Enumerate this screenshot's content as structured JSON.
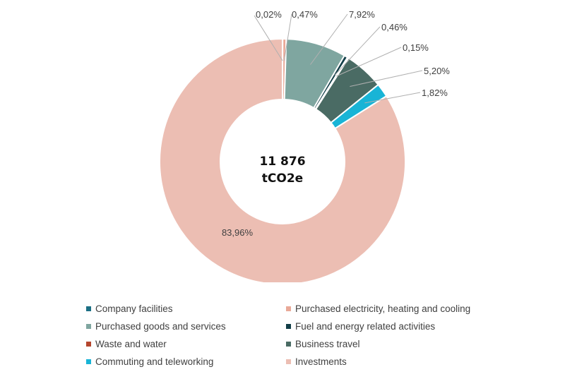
{
  "chart_data": {
    "type": "pie",
    "title": "",
    "center_label": [
      "11 876",
      "tCO2e"
    ],
    "legend_position": "bottom",
    "slices": [
      {
        "name": "Company facilities",
        "value": 0.02,
        "label": "0,02%",
        "color": "#1b6f84"
      },
      {
        "name": "Purchased electricity, heating and cooling",
        "value": 0.47,
        "label": "0,47%",
        "color": "#e9a998"
      },
      {
        "name": "Purchased goods and services",
        "value": 7.92,
        "label": "7,92%",
        "color": "#7fa6a0"
      },
      {
        "name": "Fuel and energy related activities",
        "value": 0.46,
        "label": "0,46%",
        "color": "#123e48"
      },
      {
        "name": "Waste and water",
        "value": 0.15,
        "label": "0,15%",
        "color": "#b5462e"
      },
      {
        "name": "Business travel",
        "value": 5.2,
        "label": "5,20%",
        "color": "#4a6b64"
      },
      {
        "name": "Commuting and teleworking",
        "value": 1.82,
        "label": "1,82%",
        "color": "#19b4d6"
      },
      {
        "name": "Investments",
        "value": 83.96,
        "label": "83,96%",
        "color": "#ecbeb3"
      }
    ]
  }
}
